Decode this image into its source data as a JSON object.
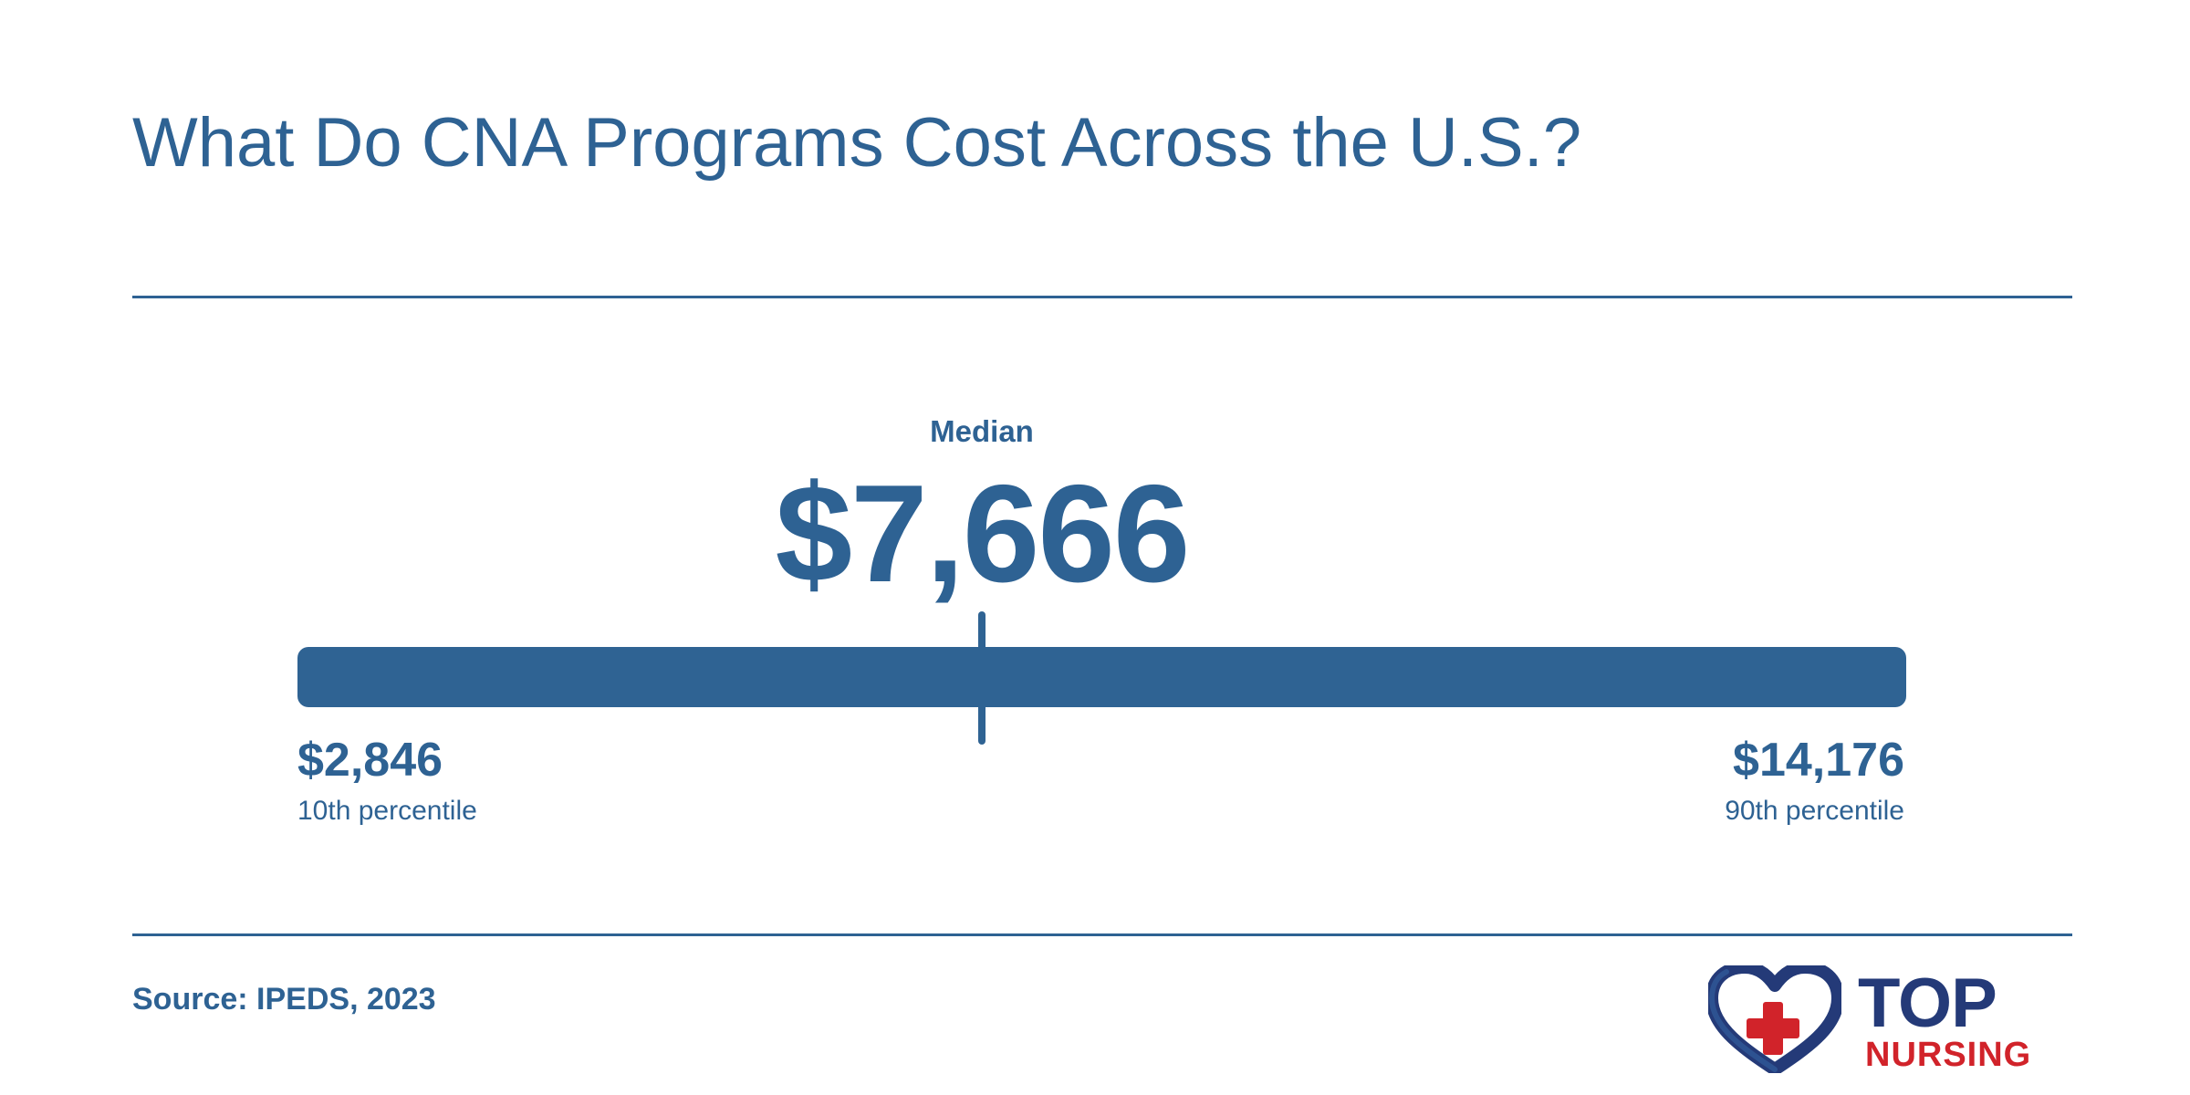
{
  "chart_data": {
    "type": "range",
    "title": "What Do CNA Programs Cost Across the U.S.?",
    "min": 2846,
    "median": 7666,
    "max": 14176,
    "min_display": "$2,846",
    "median_display": "$7,666",
    "max_display": "$14,176",
    "min_label": "10th percentile",
    "median_label": "Median",
    "max_label": "90th percentile",
    "source": "Source: IPEDS, 2023"
  },
  "colors": {
    "primary": "#2e6293",
    "logo_navy": "#243a78",
    "logo_red": "#d1232a"
  },
  "logo": {
    "icon": "heart-with-cross-icon",
    "line1": "TOP",
    "line2": "NURSING"
  }
}
